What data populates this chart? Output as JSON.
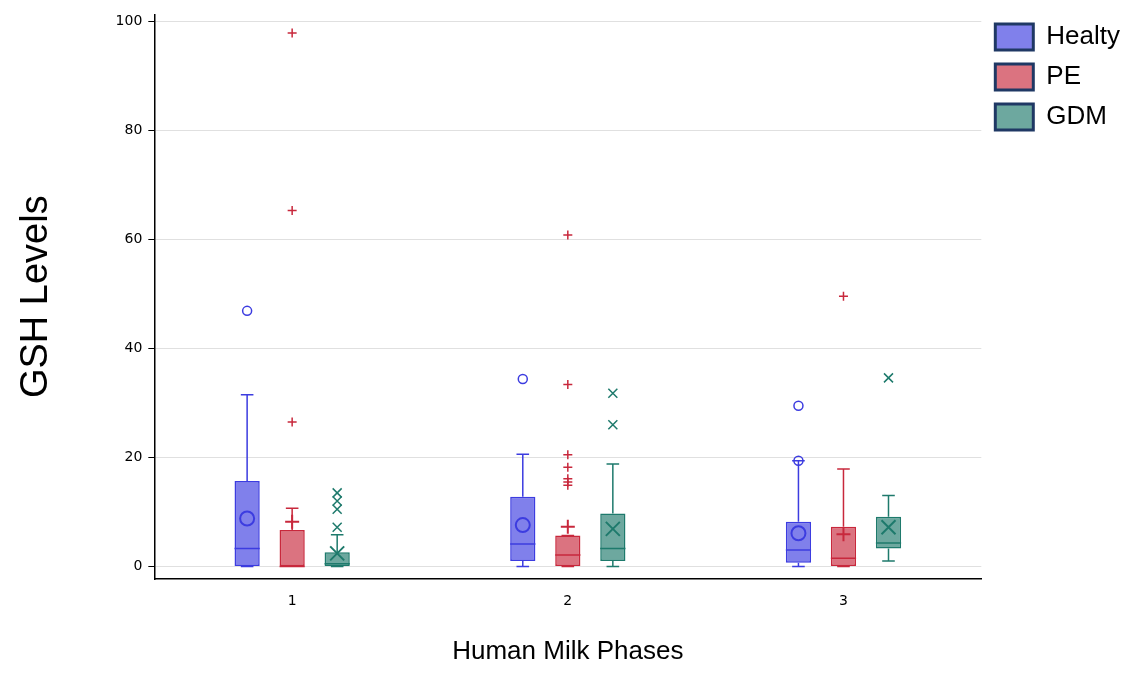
{
  "chart_data": {
    "type": "box",
    "xlabel": "Human Milk Phases",
    "ylabel": "GSH Levels",
    "categories": [
      "1",
      "2",
      "3"
    ],
    "ylim": [
      -2.3,
      101.3
    ],
    "yticks": [
      0,
      20,
      40,
      60,
      80,
      100
    ],
    "grid": "y",
    "legend": "top right",
    "series": [
      {
        "name": "Healty",
        "color": "#3c3ce0",
        "marker": "circle",
        "boxes": [
          {
            "low": 0,
            "q1": 0,
            "median": 3.3,
            "q3": 15.7,
            "high": 31.5,
            "mean": 8.8,
            "outliers": [
              46.9
            ]
          },
          {
            "low": 0,
            "q1": 1.0,
            "median": 4.1,
            "q3": 12.8,
            "high": 20.6,
            "mean": 7.6,
            "outliers": [
              34.4
            ]
          },
          {
            "low": 0,
            "q1": 0.7,
            "median": 3.0,
            "q3": 8.2,
            "high": 19.4,
            "mean": 6.1,
            "outliers": [
              19.4,
              29.5
            ]
          }
        ]
      },
      {
        "name": "PE",
        "color": "#c8283c",
        "marker": "cross",
        "boxes": [
          {
            "low": 0,
            "q1": 0,
            "median": 0,
            "q3": 6.7,
            "high": 10.7,
            "mean": 8.2,
            "outliers": [
              26.5,
              65.3,
              97.9
            ]
          },
          {
            "low": 0,
            "q1": 0,
            "median": 2.1,
            "q3": 5.7,
            "high": 5.7,
            "mean": 7.3,
            "outliers": [
              14.9,
              15.5,
              16.1,
              18.2,
              20.5,
              33.4,
              60.8
            ]
          },
          {
            "low": 0,
            "q1": 0,
            "median": 1.5,
            "q3": 7.3,
            "high": 17.9,
            "mean": 5.9,
            "outliers": [
              49.6
            ]
          }
        ]
      },
      {
        "name": "GDM",
        "color": "#1e7a6c",
        "marker": "x",
        "boxes": [
          {
            "low": 0,
            "q1": 0,
            "median": 0.5,
            "q3": 2.6,
            "high": 5.8,
            "mean": 2.4,
            "outliers": [
              7.2,
              10.5,
              12.0,
              13.5
            ]
          },
          {
            "low": 0,
            "q1": 1.0,
            "median": 3.3,
            "q3": 9.7,
            "high": 18.8,
            "mean": 6.9,
            "outliers": [
              26.0,
              31.8
            ]
          },
          {
            "low": 1.0,
            "q1": 3.3,
            "median": 4.3,
            "q3": 9.1,
            "high": 13.0,
            "mean": 7.2,
            "outliers": [
              34.6
            ]
          }
        ]
      }
    ]
  }
}
